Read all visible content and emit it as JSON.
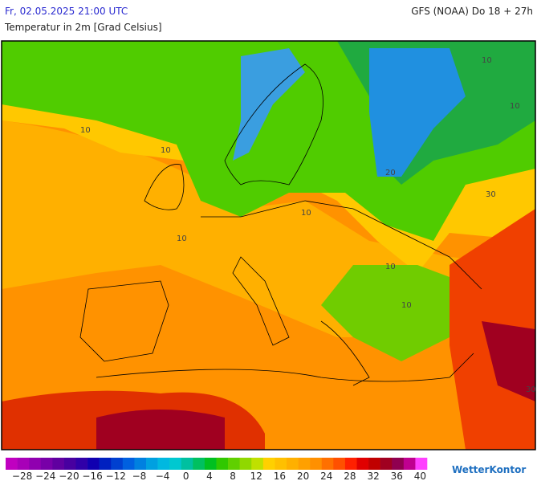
{
  "header": {
    "title": "Fr, 02.05.2025 21:00 UTC",
    "model": "GFS (NOAA) Do 18 + 27h",
    "subtitle": "Temperatur in 2m [Grad Celsius]"
  },
  "map": {
    "contour_labels": [
      "10",
      "10",
      "10",
      "10",
      "10",
      "10",
      "10",
      "10",
      "20",
      "30",
      "30"
    ]
  },
  "legend": {
    "colors": [
      "#c000c0",
      "#a800b8",
      "#9000b0",
      "#7800a8",
      "#6000a0",
      "#4800a0",
      "#3000a8",
      "#1000b0",
      "#0020c0",
      "#0040d0",
      "#0060e0",
      "#0080e0",
      "#00a0e0",
      "#00b8e0",
      "#00c8d0",
      "#00c0a0",
      "#00c060",
      "#00c020",
      "#30c800",
      "#60d000",
      "#90d800",
      "#c0e000",
      "#ffd000",
      "#ffc000",
      "#ffb000",
      "#ffa000",
      "#ff9000",
      "#ff7000",
      "#ff5000",
      "#ff2000",
      "#e00000",
      "#c00000",
      "#a00020",
      "#900050",
      "#c00090",
      "#ff40ff"
    ],
    "labels": [
      "−28",
      "−24",
      "−20",
      "−16",
      "−12",
      "−8",
      "−4",
      "0",
      "4",
      "8",
      "12",
      "16",
      "20",
      "24",
      "28",
      "32",
      "36",
      "40"
    ]
  },
  "logo": "WetterKontor"
}
